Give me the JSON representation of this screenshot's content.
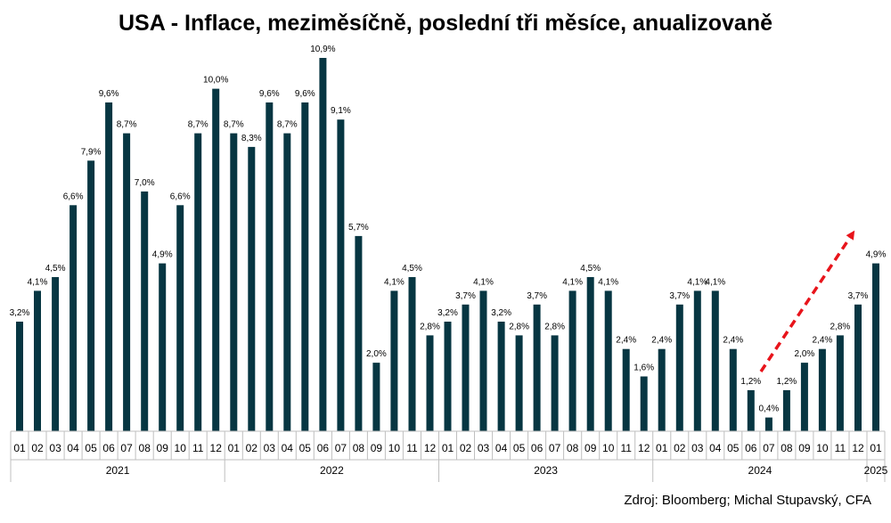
{
  "chart_data": {
    "type": "bar",
    "title": "USA - Inflace, meziměsíčně, poslední tři měsíce, anualizovaně",
    "categories": [
      "01",
      "02",
      "03",
      "04",
      "05",
      "06",
      "07",
      "08",
      "09",
      "10",
      "11",
      "12",
      "01",
      "02",
      "03",
      "04",
      "05",
      "06",
      "07",
      "08",
      "09",
      "10",
      "11",
      "12",
      "01",
      "02",
      "03",
      "04",
      "05",
      "06",
      "07",
      "08",
      "09",
      "10",
      "11",
      "12",
      "01",
      "02",
      "03",
      "04",
      "05",
      "06",
      "07",
      "08",
      "09",
      "10",
      "11",
      "12",
      "01"
    ],
    "years": [
      "2021",
      "2022",
      "2023",
      "2024",
      "2025"
    ],
    "values": [
      3.2,
      4.1,
      4.5,
      6.6,
      7.9,
      9.6,
      8.7,
      7.0,
      4.9,
      6.6,
      8.7,
      10.0,
      8.7,
      8.3,
      9.6,
      8.7,
      9.6,
      10.9,
      9.1,
      5.7,
      2.0,
      4.1,
      4.5,
      2.8,
      3.2,
      3.7,
      4.1,
      3.2,
      2.8,
      3.7,
      2.8,
      4.1,
      4.5,
      4.1,
      2.4,
      1.6,
      2.4,
      3.7,
      4.1,
      4.1,
      2.4,
      1.2,
      0.4,
      1.2,
      2.0,
      2.4,
      2.8,
      3.7,
      4.9
    ],
    "labels": [
      "3,2%",
      "4,1%",
      "4,5%",
      "6,6%",
      "7,9%",
      "9,6%",
      "8,7%",
      "7,0%",
      "4,9%",
      "6,6%",
      "8,7%",
      "10,0%",
      "8,7%",
      "8,3%",
      "9,6%",
      "8,7%",
      "9,6%",
      "10,9%",
      "9,1%",
      "5,7%",
      "2,0%",
      "4,1%",
      "4,5%",
      "2,8%",
      "3,2%",
      "3,7%",
      "4,1%",
      "3,2%",
      "2,8%",
      "3,7%",
      "2,8%",
      "4,1%",
      "4,5%",
      "4,1%",
      "2,4%",
      "1,6%",
      "2,4%",
      "3,7%",
      "4,1%",
      "4,1%",
      "2,4%",
      "1,2%",
      "0,4%",
      "1,2%",
      "2,0%",
      "2,4%",
      "2,8%",
      "3,7%",
      "4,9%"
    ],
    "ylim": [
      0,
      11.5
    ],
    "bar_color": "#073642",
    "arrow_color": "#e8141b",
    "grid": false
  },
  "title": "USA - Inflace, meziměsíčně, poslední tři měsíce, anualizovaně",
  "source": "Zdroj: Bloomberg; Michal Stupavský, CFA"
}
